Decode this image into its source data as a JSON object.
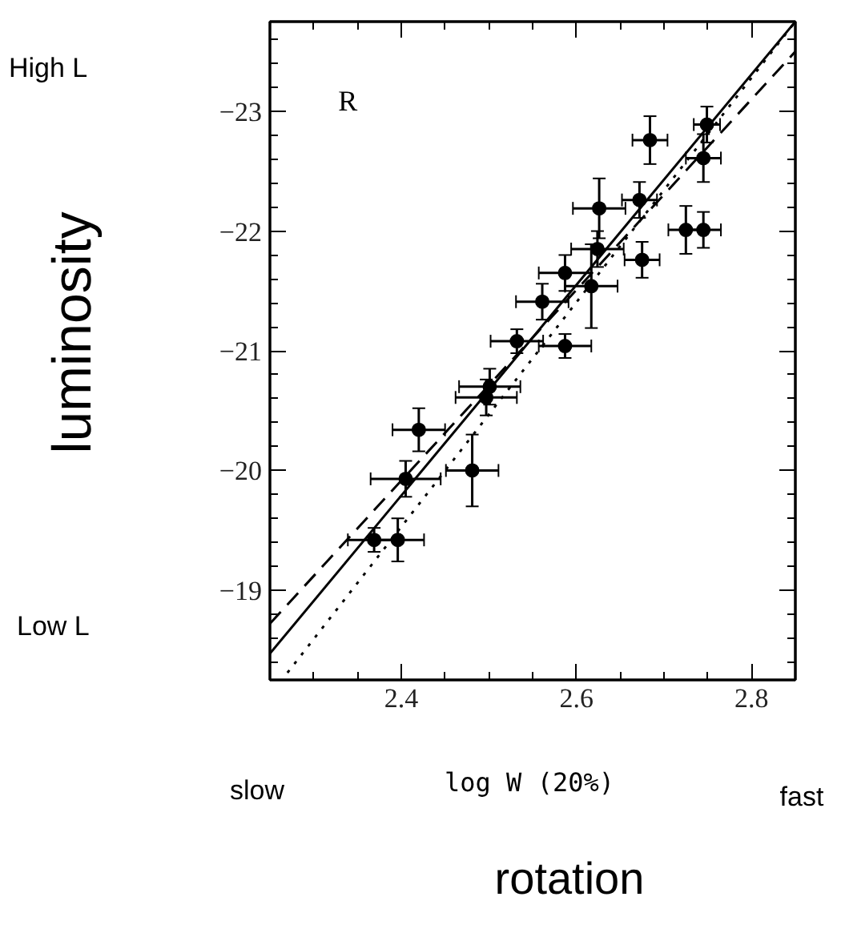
{
  "chart_data": {
    "type": "scatter",
    "xlabel": "log W (20%)",
    "ylabel": "luminosity",
    "xlim": [
      2.25,
      2.85
    ],
    "ylim": [
      -18.25,
      -23.75
    ],
    "xticks": [
      {
        "value": 2.25,
        "label": null
      },
      {
        "value": 2.3,
        "label": null
      },
      {
        "value": 2.35,
        "label": null
      },
      2.4,
      {
        "value": 2.45,
        "label": null
      },
      {
        "value": 2.5,
        "label": null
      },
      {
        "value": 2.55,
        "label": null
      },
      2.6,
      {
        "value": 2.65,
        "label": null
      },
      {
        "value": 2.7,
        "label": null
      },
      {
        "value": 2.75,
        "label": null
      },
      2.8
    ],
    "yticks": [
      -23,
      -22,
      -21,
      -20,
      -19
    ],
    "grid": false,
    "annotations": [
      "R",
      "High L",
      "Low L",
      "slow",
      "fast",
      "rotation"
    ],
    "series": [
      {
        "marker": "circle",
        "color": "#000000",
        "x": [
          2.684,
          2.749,
          2.745,
          2.626,
          2.672,
          2.725,
          2.745,
          2.675,
          2.624,
          2.587,
          2.617,
          2.561,
          2.532,
          2.587,
          2.501,
          2.497,
          2.42,
          2.405,
          2.481,
          2.369,
          2.396
        ],
        "values": [
          -22.76,
          -22.89,
          -22.61,
          -22.19,
          -22.26,
          -22.01,
          -22.01,
          -21.76,
          -21.85,
          -21.65,
          -21.54,
          -21.41,
          -21.08,
          -21.04,
          -20.7,
          -20.61,
          -20.34,
          -19.93,
          -20.0,
          -19.42,
          -19.42
        ],
        "errors": [
          0.2,
          0.15,
          0.2,
          0.25,
          0.15,
          0.2,
          0.15,
          0.15,
          0.15,
          0.15,
          0.35,
          0.15,
          0.1,
          0.1,
          0.15,
          0.15,
          0.18,
          0.15,
          0.3,
          0.1,
          0.18
        ],
        "xerrors": [
          0.02,
          0.015,
          0.02,
          0.03,
          0.02,
          0.02,
          0.02,
          0.02,
          0.03,
          0.03,
          0.03,
          0.03,
          0.03,
          0.03,
          0.035,
          0.035,
          0.03,
          0.04,
          0.03,
          0.03,
          0.03
        ]
      },
      {
        "type": "line",
        "line_style": "solid",
        "color": "#000000",
        "x": [
          2.25,
          2.85
        ],
        "values": [
          -18.47,
          -23.75
        ]
      },
      {
        "type": "line",
        "line_style": "dashed",
        "color": "#000000",
        "x": [
          2.25,
          2.85
        ],
        "values": [
          -18.72,
          -23.5
        ]
      },
      {
        "type": "line",
        "line_style": "dotted",
        "color": "#000000",
        "x": [
          2.27,
          2.85
        ],
        "values": [
          -18.31,
          -23.75
        ]
      }
    ]
  }
}
